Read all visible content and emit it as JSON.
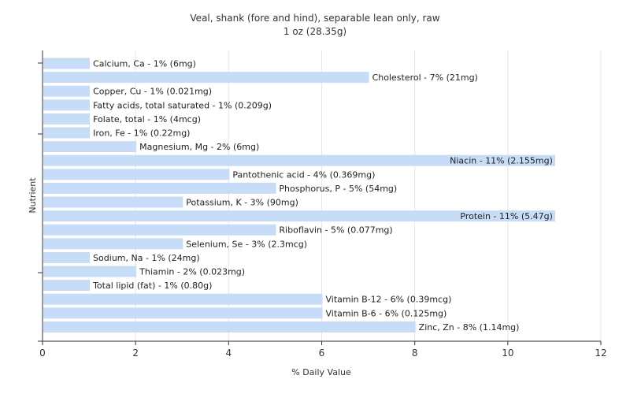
{
  "chart_data": {
    "type": "bar",
    "orientation": "horizontal",
    "title": "Veal, shank (fore and hind), separable lean only, raw",
    "subtitle": "1 oz (28.35g)",
    "xlabel": "% Daily Value",
    "ylabel": "Nutrient",
    "xlim": [
      0,
      12
    ],
    "xticks": [
      "0",
      "2",
      "4",
      "6",
      "8",
      "10",
      "12"
    ],
    "grid": "vertical",
    "bar_color": "#c6dcf7",
    "categories": [
      "Calcium, Ca",
      "Cholesterol",
      "Copper, Cu",
      "Fatty acids, total saturated",
      "Folate, total",
      "Iron, Fe",
      "Magnesium, Mg",
      "Niacin",
      "Pantothenic acid",
      "Phosphorus, P",
      "Potassium, K",
      "Protein",
      "Riboflavin",
      "Selenium, Se",
      "Sodium, Na",
      "Thiamin",
      "Total lipid (fat)",
      "Vitamin B-12",
      "Vitamin B-6",
      "Zinc, Zn"
    ],
    "values": [
      1,
      7,
      1,
      1,
      1,
      1,
      2,
      11,
      4,
      5,
      3,
      11,
      5,
      3,
      1,
      2,
      1,
      6,
      6,
      8
    ],
    "labels": [
      "Calcium, Ca - 1% (6mg)",
      "Cholesterol - 7% (21mg)",
      "Copper, Cu - 1% (0.021mg)",
      "Fatty acids, total saturated - 1% (0.209g)",
      "Folate, total - 1% (4mcg)",
      "Iron, Fe - 1% (0.22mg)",
      "Magnesium, Mg - 2% (6mg)",
      "Niacin - 11% (2.155mg)",
      "Pantothenic acid - 4% (0.369mg)",
      "Phosphorus, P - 5% (54mg)",
      "Potassium, K - 3% (90mg)",
      "Protein - 11% (5.47g)",
      "Riboflavin - 5% (0.077mg)",
      "Selenium, Se - 3% (2.3mcg)",
      "Sodium, Na - 1% (24mg)",
      "Thiamin - 2% (0.023mg)",
      "Total lipid (fat) - 1% (0.80g)",
      "Vitamin B-12 - 6% (0.39mcg)",
      "Vitamin B-6 - 6% (0.125mg)",
      "Zinc, Zn - 8% (1.14mg)"
    ]
  }
}
